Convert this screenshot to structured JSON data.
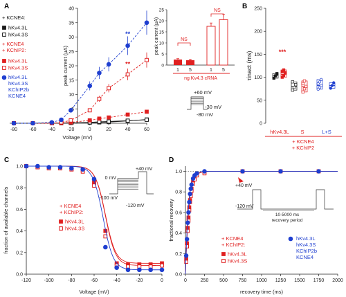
{
  "panel_letters": {
    "a": "A",
    "b": "B",
    "c": "C",
    "d": "D"
  },
  "colors": {
    "black": "#1a1a1a",
    "red": "#e02020",
    "blue": "#1f3fd0",
    "lightred": "#f3b0b0"
  },
  "chart_data": [
    {
      "panel": "A",
      "type": "line",
      "xlabel": "Voltage (mV)",
      "ylabel": "peak current (µA)",
      "xlim": [
        -80,
        60
      ],
      "ylim": [
        0,
        40
      ],
      "x_ticks": [
        -80,
        -60,
        -40,
        -20,
        0,
        20,
        40,
        60
      ],
      "y_ticks": [
        0,
        5,
        10,
        15,
        20,
        25,
        30,
        35,
        40
      ],
      "legend_header_1": "+ KCNE4:",
      "legend_header_2": "+ KCNE4\n+ KChIP2:",
      "x": [
        -80,
        -60,
        -40,
        -30,
        -20,
        0,
        10,
        20,
        40,
        60
      ],
      "series": [
        {
          "name": "hKv4.3L",
          "group": "KCNE4",
          "color": "#1a1a1a",
          "marker": "filled-square",
          "values": [
            0,
            0,
            0,
            0,
            0.1,
            0.2,
            0.3,
            0.4,
            0.8,
            1.3
          ]
        },
        {
          "name": "hKv4.3S",
          "group": "KCNE4",
          "color": "#1a1a1a",
          "marker": "open-square",
          "values": [
            0,
            0,
            0,
            0,
            0.1,
            0.3,
            0.5,
            0.6,
            0.9,
            1.2
          ]
        },
        {
          "name": "hKv4.3L",
          "group": "KCNE4 + KChIP2",
          "color": "#e02020",
          "marker": "filled-square",
          "values": [
            0,
            0,
            0,
            0.1,
            0.3,
            1.0,
            1.6,
            2.0,
            3.0,
            4.0
          ]
        },
        {
          "name": "hKv4.3S",
          "group": "KCNE4 + KChIP2",
          "color": "#e02020",
          "marker": "open-square",
          "values": [
            0,
            0,
            0,
            0.3,
            1.0,
            4.5,
            8.5,
            12.2,
            17.0,
            22.0
          ]
        },
        {
          "name": "hKv4.3L\nhKv4.3S\nKChIP2b\nKCNE4",
          "group": "hKv4.3L hKv4.3S KChIP2b KCNE4",
          "color": "#1f3fd0",
          "marker": "filled-circle",
          "values": [
            0,
            0,
            0.3,
            1.2,
            4.5,
            13.0,
            17.5,
            20.5,
            27.0,
            35.0
          ]
        }
      ],
      "annotations": [
        "**",
        "**"
      ],
      "inset_protocol": {
        "top": "+60 mV",
        "mid": "-30 mV",
        "bottom": "-80 mV"
      },
      "inset_bar": {
        "ylabel": "peak current (µA)",
        "xlabel": "ng Kv4.3 cRNA",
        "ylim": [
          0,
          25
        ],
        "y_ticks": [
          0,
          5,
          10,
          15,
          20,
          25
        ],
        "groups": [
          {
            "category": "1",
            "value": 2.5,
            "error": 0.4,
            "style": "filled"
          },
          {
            "category": "5",
            "value": 2.2,
            "error": 0.4,
            "style": "filled"
          },
          {
            "category": "1",
            "value": 17.5,
            "error": 1.5,
            "style": "open"
          },
          {
            "category": "5",
            "value": 20.5,
            "error": 2.5,
            "style": "open"
          }
        ],
        "sig_labels": [
          "NS",
          "NS"
        ]
      }
    },
    {
      "panel": "B",
      "type": "scatter",
      "ylabel": "τinact (ms)",
      "ylim": [
        0,
        250
      ],
      "y_ticks": [
        0,
        50,
        100,
        150,
        200,
        250
      ],
      "categories": [
        "hKv4.3L",
        "S",
        "L+S"
      ],
      "group_label": "+ KCNE4\n+ KChIP2",
      "groups": [
        {
          "category": "hKv4.3L",
          "color": "#1a1a1a",
          "mean": 104,
          "points": [
            98,
            103,
            108
          ]
        },
        {
          "category": "hKv4.3L",
          "color": "#e02020",
          "mean": 106,
          "points": [
            100,
            104,
            110,
            112,
            116
          ]
        },
        {
          "category": "S",
          "color": "#1a1a1a",
          "mean": 80,
          "points": [
            72,
            78,
            84,
            90
          ]
        },
        {
          "category": "S",
          "color": "#e02020",
          "mean": 80,
          "points": [
            68,
            75,
            80,
            86,
            92
          ]
        },
        {
          "category": "L+S",
          "color": "#1f3fd0",
          "mean": 82,
          "points": [
            74,
            78,
            82,
            86,
            90,
            95
          ]
        },
        {
          "category": "L+S",
          "color": "#1f3fd0",
          "mean": 82,
          "points": [
            76,
            82,
            88
          ]
        }
      ],
      "annotations": [
        "***"
      ]
    },
    {
      "panel": "C",
      "type": "line",
      "xlabel": "Voltage (mV)",
      "ylabel": "fraction of available channels",
      "xlim": [
        -120,
        0
      ],
      "ylim": [
        0,
        1.0
      ],
      "x_ticks": [
        -120,
        -100,
        -80,
        -60,
        -40,
        -20,
        0
      ],
      "y_ticks": [
        0.0,
        0.2,
        0.4,
        0.6,
        0.8,
        1.0
      ],
      "legend_header": "+ KCNE4\n+ KChIP2:",
      "x": [
        -120,
        -110,
        -100,
        -90,
        -80,
        -70,
        -60,
        -50,
        -40,
        -30,
        -20,
        -10,
        0
      ],
      "series": [
        {
          "name": "hKv4.3L",
          "color": "#e02020",
          "marker": "filled-square",
          "values": [
            1.0,
            0.99,
            0.98,
            0.98,
            0.97,
            0.96,
            0.85,
            0.4,
            0.1,
            0.09,
            0.09,
            0.09,
            0.1
          ]
        },
        {
          "name": "hKv4.3S",
          "color": "#e02020",
          "marker": "open-square",
          "values": [
            1.0,
            0.99,
            0.98,
            0.98,
            0.97,
            0.95,
            0.82,
            0.35,
            0.08,
            0.07,
            0.07,
            0.07,
            0.08
          ]
        },
        {
          "name": "blue",
          "color": "#1f3fd0",
          "marker": "filled-circle",
          "values": [
            1.0,
            1.0,
            0.99,
            0.99,
            0.98,
            0.97,
            0.88,
            0.25,
            0.06,
            0.04,
            0.04,
            0.04,
            0.04
          ]
        }
      ],
      "inset_protocol": {
        "top": "+40 mV",
        "a": "0 mV",
        "b": "-100 mV",
        "c": "-120 mV"
      }
    },
    {
      "panel": "D",
      "type": "line",
      "xlabel": "recovery time (ms)",
      "ylabel": "fractional recovery",
      "xlim": [
        0,
        2000
      ],
      "ylim": [
        0,
        1.05
      ],
      "x_ticks": [
        0,
        250,
        500,
        750,
        1000,
        1250,
        1500,
        1750,
        2000
      ],
      "y_ticks": [
        0.0,
        0.2,
        0.4,
        0.6,
        0.8,
        1.0
      ],
      "legend_header": "+ KCNE4\n+ KChIP2:",
      "legend_blue": "hKv4.3L\nhKv4.3S\nKChIP2b\nKCNE4",
      "x": [
        10,
        20,
        30,
        40,
        50,
        60,
        70,
        80,
        100,
        120,
        150,
        250,
        750,
        1250,
        1750
      ],
      "series": [
        {
          "name": "hKv4.3L",
          "color": "#e02020",
          "marker": "filled-square",
          "values": [
            0.15,
            0.3,
            0.45,
            0.55,
            0.65,
            0.72,
            0.78,
            0.83,
            0.9,
            0.94,
            0.97,
            0.99,
            1.0,
            1.0,
            1.0
          ]
        },
        {
          "name": "hKv4.3S",
          "color": "#e02020",
          "marker": "open-square",
          "values": [
            0.12,
            0.27,
            0.42,
            0.52,
            0.62,
            0.7,
            0.76,
            0.81,
            0.88,
            0.92,
            0.96,
            0.98,
            1.0,
            1.0,
            1.0
          ]
        },
        {
          "name": "blue",
          "color": "#1f3fd0",
          "marker": "filled-circle",
          "values": [
            0.18,
            0.34,
            0.5,
            0.6,
            0.7,
            0.78,
            0.83,
            0.87,
            0.93,
            0.96,
            0.98,
            1.0,
            1.0,
            1.0,
            1.0
          ]
        }
      ],
      "inset_protocol": {
        "top": "+40 mV",
        "bottom": "-120 mV",
        "interval": "10-5000 ms\nrecovery period"
      }
    }
  ]
}
